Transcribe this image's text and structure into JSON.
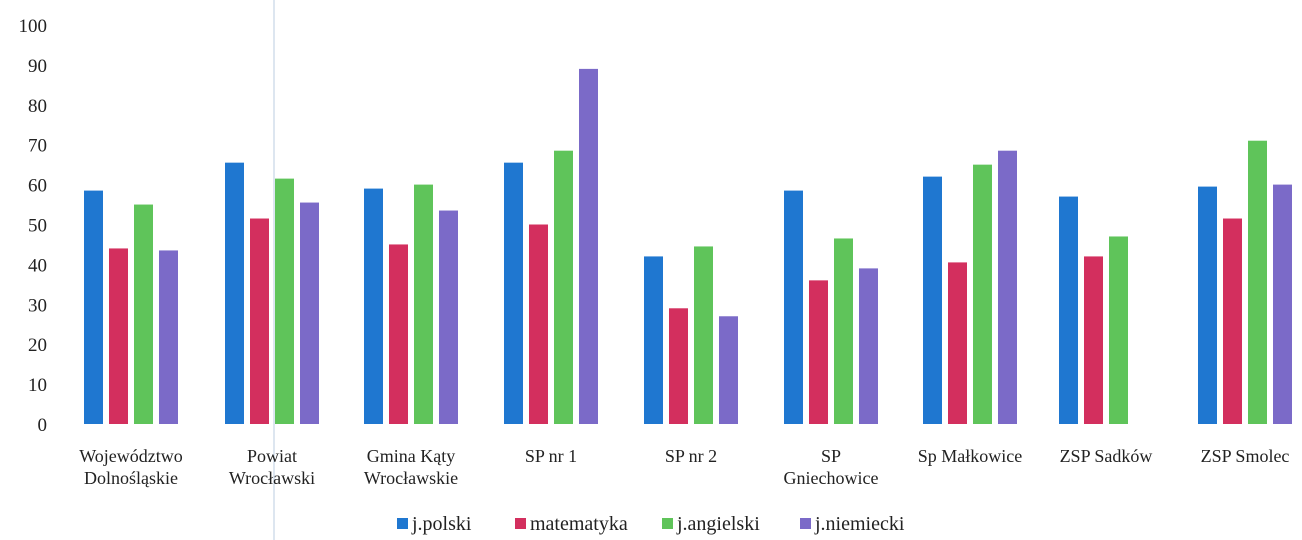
{
  "chart_data": {
    "type": "bar",
    "title": "",
    "xlabel": "",
    "ylabel": "",
    "ylim": [
      0,
      100
    ],
    "yticks": [
      0,
      10,
      20,
      30,
      40,
      50,
      60,
      70,
      80,
      90,
      100
    ],
    "grid": false,
    "legend_position": "bottom",
    "categories": [
      [
        "Województwo",
        "Dolnośląskie"
      ],
      [
        "Powiat",
        "Wrocławski"
      ],
      [
        "Gmina Kąty",
        "Wrocławskie"
      ],
      [
        "SP nr 1"
      ],
      [
        "SP nr 2"
      ],
      [
        "SP",
        "Gniechowice"
      ],
      [
        "Sp Małkowice"
      ],
      [
        "ZSP Sadków"
      ],
      [
        "ZSP Smolec"
      ]
    ],
    "series": [
      {
        "name": "j.polski",
        "color": "#1f77d0",
        "values": [
          58.5,
          65.5,
          59,
          65.5,
          42,
          58.5,
          62,
          57,
          59.5
        ]
      },
      {
        "name": "matematyka",
        "color": "#d32f5e",
        "values": [
          44,
          51.5,
          45,
          50,
          29,
          36,
          40.5,
          42,
          51.5
        ]
      },
      {
        "name": "j.angielski",
        "color": "#5fc45a",
        "values": [
          55,
          61.5,
          60,
          68.5,
          44.5,
          46.5,
          65,
          47,
          71
        ]
      },
      {
        "name": "j.niemiecki",
        "color": "#7b6ac8",
        "values": [
          43.5,
          55.5,
          53.5,
          89,
          27,
          39,
          68.5,
          null,
          60
        ]
      }
    ]
  }
}
